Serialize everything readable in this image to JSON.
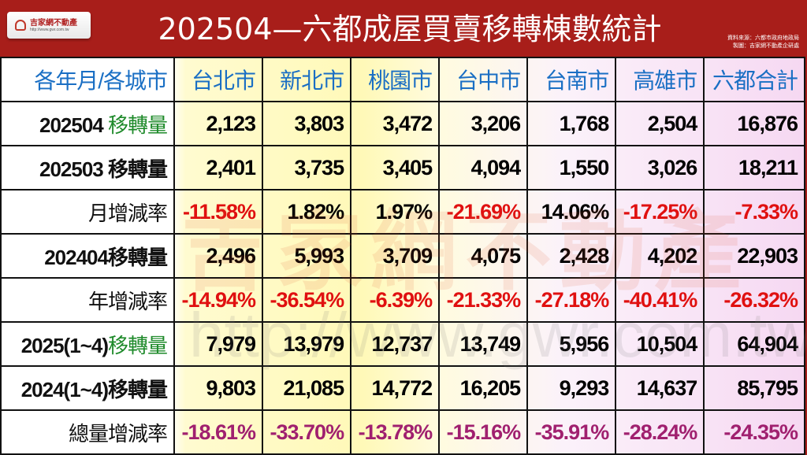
{
  "logo": {
    "name": "吉家網不動產",
    "url": "http://www.gwr.com.tw"
  },
  "title": "202504—六都成屋買賣移轉棟數統計",
  "source": {
    "line1": "資料來源：六都市政府地政局",
    "line2": "製圖：吉家網不動產企研處"
  },
  "watermark": {
    "name": "吉家網不動產",
    "url": "http://www.gwr.com.tw"
  },
  "table": {
    "headers": [
      "各年月/各城市",
      "台北市",
      "新北市",
      "桃園市",
      "台中市",
      "台南市",
      "高雄市",
      "六都合計"
    ],
    "rows": [
      {
        "label_a": "202504 ",
        "label_b": "移轉量",
        "values": [
          "2,123",
          "3,803",
          "3,472",
          "3,206",
          "1,768",
          "2,504",
          "16,876"
        ]
      },
      {
        "label_a": "202503 ",
        "label_b": "移轉量",
        "values": [
          "2,401",
          "3,735",
          "3,405",
          "4,094",
          "1,550",
          "3,026",
          "18,211"
        ]
      },
      {
        "label_a": "",
        "label_b": "月增減率",
        "values": [
          "-11.58%",
          "1.82%",
          "1.97%",
          "-21.69%",
          "14.06%",
          "-17.25%",
          "-7.33%"
        ]
      },
      {
        "label_a": "202404",
        "label_b": "移轉量",
        "values": [
          "2,496",
          "5,993",
          "3,709",
          "4,075",
          "2,428",
          "4,202",
          "22,903"
        ]
      },
      {
        "label_a": "",
        "label_b": "年增減率",
        "values": [
          "-14.94%",
          "-36.54%",
          "-6.39%",
          "-21.33%",
          "-27.18%",
          "-40.41%",
          "-26.32%"
        ]
      },
      {
        "label_a": "2025(1~4)",
        "label_b": "移轉量",
        "values": [
          "7,979",
          "13,979",
          "12,737",
          "13,749",
          "5,956",
          "10,504",
          "64,904"
        ]
      },
      {
        "label_a": "2024(1~4)",
        "label_b": "移轉量",
        "values": [
          "9,803",
          "21,085",
          "14,772",
          "16,205",
          "9,293",
          "14,637",
          "85,795"
        ]
      },
      {
        "label_a": "",
        "label_b": "總量增減率",
        "values": [
          "-18.61%",
          "-33.70%",
          "-13.78%",
          "-15.16%",
          "-35.91%",
          "-28.24%",
          "-24.35%"
        ]
      }
    ]
  },
  "colors": {
    "header_bg": "#a81e1a",
    "header_text": "#1a6fc4",
    "negative": "#e01010",
    "total_rate": "#a0206f",
    "highlight_label": "#1e8a2a"
  }
}
